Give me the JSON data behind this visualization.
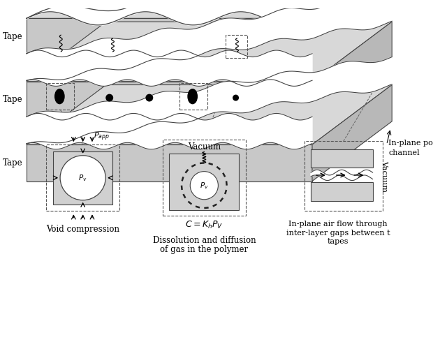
{
  "bg_color": "#ffffff",
  "tape_top_color": "#d8d8d8",
  "tape_front_color": "#c8c8c8",
  "tape_side_color": "#b8b8b8",
  "tape_white_gap": "#ffffff",
  "box_bg": "#d0d0d0",
  "edge_color": "#444444",
  "text_color": "#111111",
  "tape_labels": [
    "Tape",
    "Tape",
    "Tape"
  ],
  "inplane_label": "In-plane po\nchannel",
  "void_compression_label": "Void compression",
  "dissolution_label1": "Dissolution and diffusion",
  "dissolution_label2": "of gas in the polymer",
  "inplane_flow_label1": "In-plane air flow through",
  "inplane_flow_label2": "inter-layer gaps between t",
  "inplane_flow_label3": "tapes",
  "papp_label": "$P_{app}$",
  "pv_label": "$P_v$",
  "vacuum_label": "Vacuum",
  "henry_label": "$C = K_h P_V$"
}
